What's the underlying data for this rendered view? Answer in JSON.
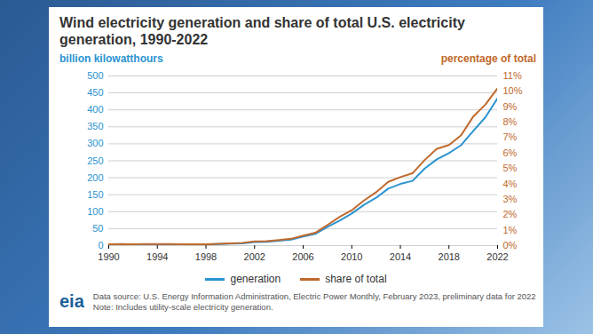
{
  "chart_data": {
    "type": "line",
    "title": "Wind electricity generation and share of total U.S. electricity generation, 1990-2022",
    "y_label": "billion kilowatthours",
    "y2_label": "percentage of total",
    "source": "Data source: U.S. Energy Information Administration, Electric Power Monthly, February 2023, preliminary data for 2022",
    "note": "Note: Includes utility-scale electricity generation.",
    "logo": "eia",
    "x": [
      1990,
      1991,
      1992,
      1993,
      1994,
      1995,
      1996,
      1997,
      1998,
      1999,
      2000,
      2001,
      2002,
      2003,
      2004,
      2005,
      2006,
      2007,
      2008,
      2009,
      2010,
      2011,
      2012,
      2013,
      2014,
      2015,
      2016,
      2017,
      2018,
      2019,
      2020,
      2021,
      2022
    ],
    "xlim": [
      1990,
      2022
    ],
    "xticks": [
      1990,
      1994,
      1998,
      2002,
      2006,
      2010,
      2014,
      2018,
      2022
    ],
    "ylim": [
      0,
      500
    ],
    "yticks": [
      0,
      50,
      100,
      150,
      200,
      250,
      300,
      350,
      400,
      450,
      500
    ],
    "y2lim": [
      0,
      11
    ],
    "y2ticks": [
      {
        "value": 0,
        "label": "0%"
      },
      {
        "value": 1,
        "label": "1%"
      },
      {
        "value": 2,
        "label": "2%"
      },
      {
        "value": 3,
        "label": "3%"
      },
      {
        "value": 4,
        "label": "4%"
      },
      {
        "value": 5,
        "label": "5%"
      },
      {
        "value": 6,
        "label": "6%"
      },
      {
        "value": 7,
        "label": "7%"
      },
      {
        "value": 8,
        "label": "8%"
      },
      {
        "value": 9,
        "label": "9%"
      },
      {
        "value": 10,
        "label": "10%"
      },
      {
        "value": 11,
        "label": "11%"
      }
    ],
    "grid": true,
    "legend": "bottom",
    "series": [
      {
        "name": "generation",
        "color": "#2b93d1",
        "axis": "y",
        "values": [
          2.8,
          3.0,
          2.9,
          3.0,
          3.4,
          3.2,
          3.2,
          3.3,
          3.0,
          4.5,
          5.6,
          6.7,
          10.4,
          11.2,
          14.1,
          17.8,
          26.6,
          34.5,
          55.4,
          73.9,
          94.7,
          120.2,
          140.8,
          167.8,
          181.7,
          190.7,
          226.9,
          254.3,
          272.7,
          295.9,
          337.9,
          378.2,
          434.3
        ]
      },
      {
        "name": "share of total",
        "color": "#c0692c",
        "axis": "y2",
        "values": [
          0.09,
          0.1,
          0.09,
          0.1,
          0.1,
          0.1,
          0.09,
          0.09,
          0.08,
          0.12,
          0.15,
          0.18,
          0.27,
          0.29,
          0.36,
          0.44,
          0.65,
          0.83,
          1.34,
          1.86,
          2.29,
          2.92,
          3.46,
          4.13,
          4.44,
          4.69,
          5.55,
          6.28,
          6.52,
          7.16,
          8.37,
          9.15,
          10.2
        ]
      }
    ]
  }
}
